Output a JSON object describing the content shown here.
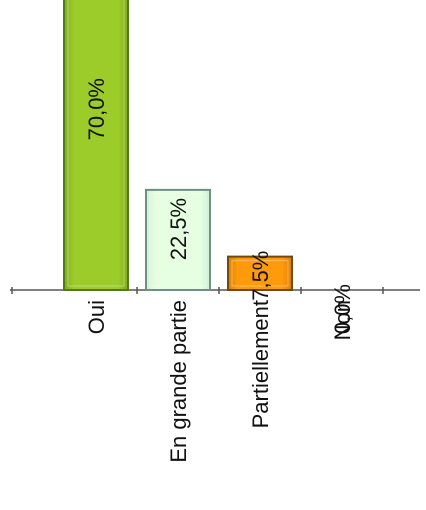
{
  "chart_data": {
    "type": "bar",
    "orientation": "vertical",
    "categories": [
      "Oui",
      "En grande partie",
      "Partiellement",
      "Non"
    ],
    "values": [
      70.0,
      22.5,
      7.5,
      0.0
    ],
    "value_labels": [
      "70,0%",
      "22,5%",
      "7,5%",
      "0,0%"
    ],
    "colors": [
      "#9ccc29",
      "#e6ffe1",
      "#ff9a0a",
      "#ffffff"
    ],
    "border_colors": [
      "#4f7a16",
      "#6f8f84",
      "#6b4a14",
      "#444444"
    ],
    "value_unit": "%",
    "title": "",
    "xlabel": "",
    "ylabel": "",
    "grid": false,
    "legend": "none",
    "label_rotation": -90
  }
}
